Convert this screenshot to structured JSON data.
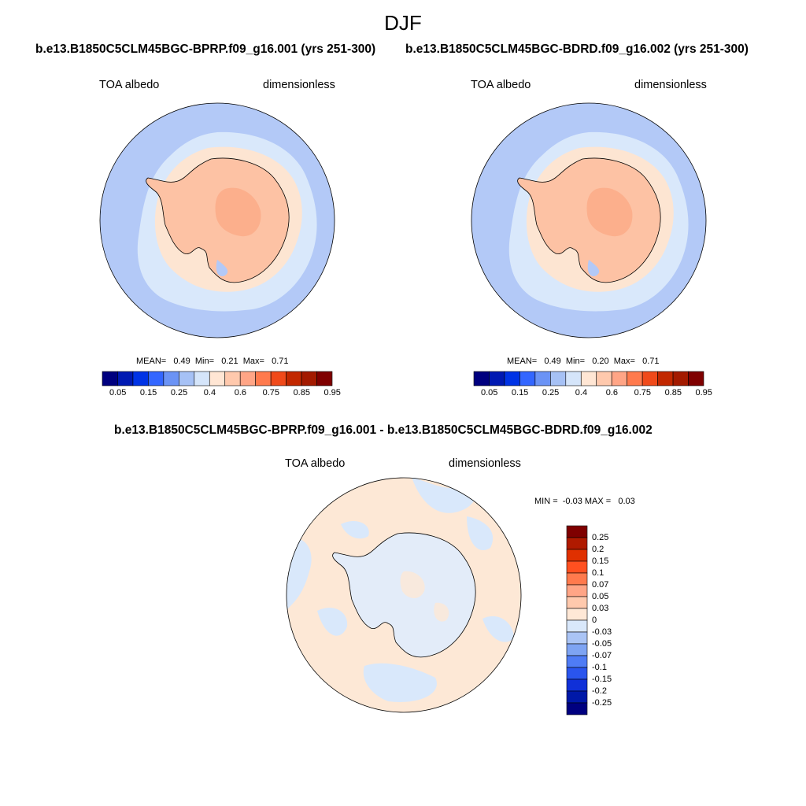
{
  "header": {
    "title": "DJF",
    "case_left": "b.e13.B1850C5CLM45BGC-BPRP.f09_g16.001 (yrs 251-300)",
    "case_right": "b.e13.B1850C5CLM45BGC-BDRD.f09_g16.002 (yrs 251-300)",
    "diff_title": "b.e13.B1850C5CLM45BGC-BPRP.f09_g16.001 - b.e13.B1850C5CLM45BGC-BDRD.f09_g16.002"
  },
  "panels": {
    "left": {
      "variable": "TOA albedo",
      "units": "dimensionless",
      "stats": "MEAN=   0.49  Min=   0.21  Max=   0.71",
      "mean": 0.49,
      "min": 0.21,
      "max": 0.71
    },
    "right": {
      "variable": "TOA albedo",
      "units": "dimensionless",
      "stats": "MEAN=   0.49  Min=   0.20  Max=   0.71",
      "mean": 0.49,
      "min": 0.2,
      "max": 0.71
    },
    "diff": {
      "variable": "TOA albedo",
      "units": "dimensionless",
      "stats": "MIN =  -0.03 MAX =   0.03",
      "min": -0.03,
      "max": 0.03
    }
  },
  "colorbar_main": {
    "colors": [
      "#00007f",
      "#0019b2",
      "#0033e5",
      "#3366ff",
      "#6b93f5",
      "#a6c1f5",
      "#d5e5fa",
      "#ffe6d4",
      "#ffc9ad",
      "#ffa586",
      "#ff7a4d",
      "#f04a1a",
      "#c22800",
      "#a31a00",
      "#7f0000"
    ],
    "labels": [
      "0.05",
      "0.15",
      "0.25",
      "0.4",
      "0.6",
      "0.75",
      "0.85",
      "0.95"
    ]
  },
  "colorbar_diff": {
    "colors": [
      "#7f0000",
      "#b01a00",
      "#e03000",
      "#ff5020",
      "#ff7a4d",
      "#ffa586",
      "#ffc9ad",
      "#ffe8d6",
      "#d9e8fb",
      "#aac4f5",
      "#7ea4f3",
      "#4f7cf5",
      "#2a55ee",
      "#1030d8",
      "#0018a8",
      "#000080"
    ],
    "labels": [
      "0.25",
      "0.2",
      "0.15",
      "0.1",
      "0.07",
      "0.05",
      "0.03",
      "0",
      "-0.03",
      "-0.05",
      "-0.07",
      "-0.1",
      "-0.15",
      "-0.2",
      "-0.25"
    ]
  },
  "map_colors": {
    "outer_ring": "#b3c9f7",
    "sea_ice": "#d9e8fb",
    "near_coast": "#fde5d2",
    "continent": "#fdc2a4",
    "interior": "#fbac88",
    "diff_pos": "#fde8d6",
    "diff_neg": "#d9e8fb"
  }
}
